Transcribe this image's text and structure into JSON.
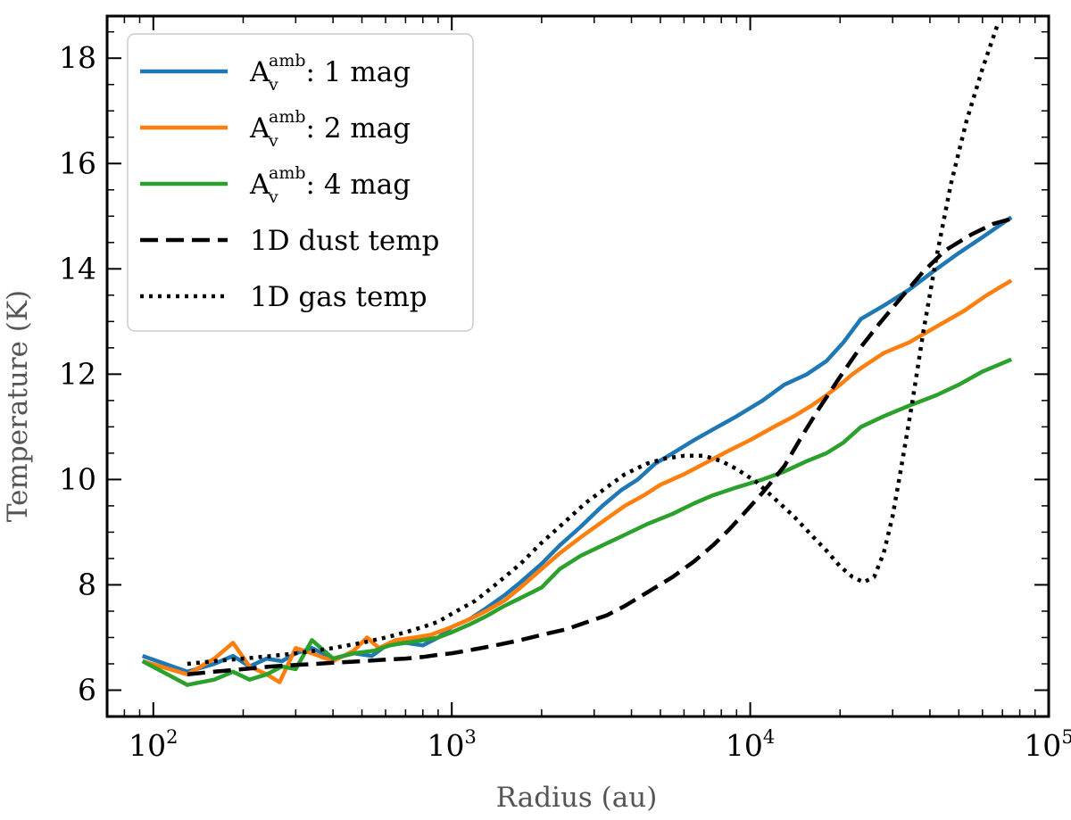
{
  "chart_data": {
    "type": "line",
    "xlabel": "Radius (au)",
    "ylabel": "Temperature (K)",
    "xscale": "log",
    "xlim": [
      70,
      100000
    ],
    "ylim": [
      5.5,
      18.8
    ],
    "grid": false,
    "legend_position": "top-left",
    "x_ticks": [
      {
        "value": 100,
        "base": "10",
        "exp": "2"
      },
      {
        "value": 1000,
        "base": "10",
        "exp": "3"
      },
      {
        "value": 10000,
        "base": "10",
        "exp": "4"
      },
      {
        "value": 100000,
        "base": "10",
        "exp": "5"
      }
    ],
    "y_ticks": [
      {
        "value": 6,
        "label": "6"
      },
      {
        "value": 8,
        "label": "8"
      },
      {
        "value": 10,
        "label": "10"
      },
      {
        "value": 12,
        "label": "12"
      },
      {
        "value": 14,
        "label": "14"
      },
      {
        "value": 16,
        "label": "16"
      },
      {
        "value": 18,
        "label": "18"
      }
    ],
    "series": [
      {
        "label_main": "A",
        "label_sub": "v",
        "label_sup": "amb",
        "label_rest": ": 1 mag",
        "color": "#1f77b4",
        "style": "solid",
        "x": [
          92,
          130,
          160,
          185,
          210,
          240,
          270,
          300,
          340,
          400,
          470,
          540,
          620,
          700,
          800,
          900,
          1000,
          1150,
          1300,
          1500,
          1700,
          2000,
          2300,
          2700,
          3200,
          3700,
          4200,
          4800,
          5500,
          6500,
          7500,
          9000,
          11000,
          13000,
          15500,
          18000,
          20500,
          23500,
          28000,
          34000,
          41000,
          50000,
          60000,
          75000
        ],
        "y": [
          6.65,
          6.35,
          6.5,
          6.65,
          6.45,
          6.6,
          6.55,
          6.7,
          6.8,
          6.6,
          6.7,
          6.65,
          6.9,
          6.9,
          6.85,
          7.0,
          7.2,
          7.35,
          7.55,
          7.8,
          8.05,
          8.4,
          8.75,
          9.1,
          9.5,
          9.8,
          10.0,
          10.3,
          10.5,
          10.75,
          10.95,
          11.2,
          11.5,
          11.8,
          12.0,
          12.25,
          12.6,
          13.05,
          13.3,
          13.6,
          13.95,
          14.3,
          14.6,
          14.98
        ]
      },
      {
        "label_main": "A",
        "label_sub": "v",
        "label_sup": "amb",
        "label_rest": ": 2 mag",
        "color": "#ff7f0e",
        "style": "solid",
        "x": [
          92,
          130,
          160,
          185,
          210,
          240,
          265,
          300,
          340,
          400,
          470,
          520,
          570,
          650,
          750,
          850,
          1000,
          1150,
          1300,
          1500,
          1700,
          2000,
          2300,
          2700,
          3200,
          3800,
          4400,
          5000,
          6000,
          7000,
          8500,
          10000,
          12000,
          14000,
          16000,
          18000,
          20000,
          22000,
          24000,
          28000,
          34000,
          42000,
          52000,
          62000,
          75000
        ],
        "y": [
          6.55,
          6.3,
          6.6,
          6.9,
          6.45,
          6.3,
          6.15,
          6.8,
          6.7,
          6.55,
          6.75,
          7.0,
          6.8,
          6.95,
          7.0,
          7.05,
          7.2,
          7.35,
          7.5,
          7.7,
          7.95,
          8.3,
          8.6,
          8.9,
          9.2,
          9.5,
          9.7,
          9.9,
          10.1,
          10.3,
          10.55,
          10.75,
          11.0,
          11.2,
          11.4,
          11.6,
          11.8,
          12.0,
          12.15,
          12.4,
          12.6,
          12.9,
          13.2,
          13.5,
          13.78
        ]
      },
      {
        "label_main": "A",
        "label_sub": "v",
        "label_sup": "amb",
        "label_rest": ": 4 mag",
        "color": "#2ca02c",
        "style": "solid",
        "x": [
          92,
          130,
          160,
          185,
          210,
          240,
          270,
          300,
          340,
          400,
          470,
          550,
          620,
          700,
          800,
          900,
          1000,
          1150,
          1300,
          1500,
          1700,
          2000,
          2300,
          2700,
          3200,
          3800,
          4500,
          5500,
          6500,
          7500,
          9000,
          11000,
          13000,
          15500,
          18000,
          20500,
          23500,
          28000,
          34000,
          42000,
          50000,
          60000,
          75000
        ],
        "y": [
          6.55,
          6.1,
          6.2,
          6.35,
          6.2,
          6.3,
          6.45,
          6.4,
          6.95,
          6.6,
          6.7,
          6.75,
          6.85,
          6.9,
          6.95,
          7.0,
          7.1,
          7.25,
          7.4,
          7.6,
          7.75,
          7.95,
          8.3,
          8.55,
          8.75,
          8.95,
          9.15,
          9.35,
          9.55,
          9.7,
          9.85,
          10.0,
          10.15,
          10.35,
          10.5,
          10.7,
          11.0,
          11.2,
          11.4,
          11.6,
          11.8,
          12.05,
          12.28
        ]
      },
      {
        "label_main": "1D dust temp",
        "label_sub": "",
        "label_sup": "",
        "label_rest": "",
        "color": "#000000",
        "style": "dashed",
        "x": [
          130,
          160,
          200,
          250,
          300,
          350,
          400,
          500,
          600,
          700,
          800,
          900,
          1000,
          1200,
          1400,
          1700,
          2000,
          2400,
          2800,
          3300,
          3800,
          4500,
          5500,
          6500,
          7500,
          8500,
          9500,
          11000,
          13000,
          15000,
          17000,
          20000,
          23000,
          27000,
          32000,
          38000,
          45000,
          55000,
          65000,
          75000
        ],
        "y": [
          6.3,
          6.35,
          6.4,
          6.45,
          6.48,
          6.5,
          6.52,
          6.55,
          6.58,
          6.6,
          6.63,
          6.67,
          6.7,
          6.78,
          6.85,
          6.95,
          7.05,
          7.15,
          7.28,
          7.42,
          7.6,
          7.85,
          8.15,
          8.45,
          8.75,
          9.05,
          9.35,
          9.75,
          10.25,
          10.85,
          11.35,
          11.95,
          12.45,
          12.95,
          13.45,
          13.95,
          14.35,
          14.65,
          14.85,
          14.95
        ]
      },
      {
        "label_main": "1D gas temp",
        "label_sub": "",
        "label_sup": "",
        "label_rest": "",
        "color": "#000000",
        "style": "dotted",
        "x": [
          130,
          160,
          200,
          250,
          300,
          350,
          400,
          500,
          600,
          700,
          800,
          900,
          1000,
          1200,
          1400,
          1700,
          2000,
          2400,
          2800,
          3300,
          3800,
          4500,
          5200,
          6000,
          7000,
          8000,
          9000,
          10500,
          12000,
          14000,
          16000,
          18000,
          20000,
          22000,
          24000,
          26000,
          28000,
          30000,
          32000,
          35000,
          38000,
          42000,
          47000,
          53000,
          60000,
          68000
        ],
        "y": [
          6.5,
          6.55,
          6.6,
          6.65,
          6.7,
          6.75,
          6.8,
          6.9,
          7.0,
          7.1,
          7.2,
          7.3,
          7.45,
          7.7,
          8.0,
          8.4,
          8.8,
          9.2,
          9.55,
          9.85,
          10.1,
          10.3,
          10.4,
          10.45,
          10.45,
          10.35,
          10.2,
          9.95,
          9.65,
          9.3,
          8.95,
          8.65,
          8.35,
          8.15,
          8.05,
          8.15,
          8.6,
          9.3,
          10.2,
          11.5,
          12.8,
          14.2,
          15.6,
          16.8,
          17.8,
          18.7
        ]
      }
    ]
  }
}
